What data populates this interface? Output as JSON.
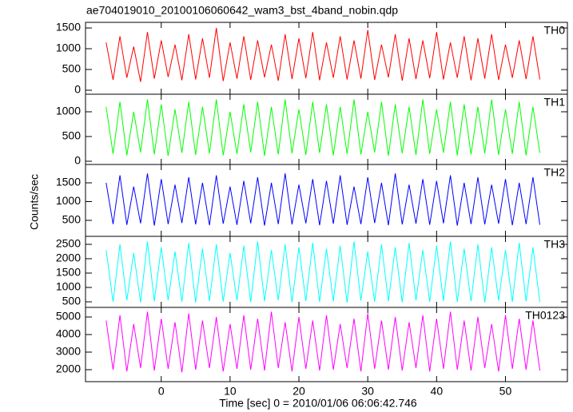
{
  "chart_data": [
    {
      "type": "line",
      "title": "ae704019010_20100106060642_wam3_bst_4band_nobin.qdp",
      "label": "TH0",
      "color": "#ff0000",
      "x": [
        -8,
        -7,
        -6,
        -5,
        -4,
        -3,
        -2,
        -1,
        0,
        1,
        2,
        3,
        4,
        5,
        6,
        7,
        8,
        9,
        10,
        11,
        12,
        13,
        14,
        15,
        16,
        17,
        18,
        19,
        20,
        21,
        22,
        23,
        24,
        25,
        26,
        27,
        28,
        29,
        30,
        31,
        32,
        33,
        34,
        35,
        36,
        37,
        38,
        39,
        40,
        41,
        42,
        43,
        44,
        45,
        46,
        47,
        48,
        49,
        50,
        51,
        52,
        53,
        54,
        55
      ],
      "values": [
        1150,
        250,
        1300,
        300,
        1050,
        200,
        1400,
        280,
        1200,
        320,
        1100,
        240,
        1350,
        260,
        1250,
        300,
        1500,
        220,
        1150,
        280,
        1300,
        250,
        1200,
        310,
        1100,
        230,
        1350,
        270,
        1250,
        290,
        1400,
        240,
        1150,
        300,
        1300,
        260,
        1200,
        280,
        1450,
        250,
        1100,
        310,
        1350,
        230,
        1250,
        270,
        1200,
        290,
        1400,
        260,
        1150,
        300,
        1300,
        240,
        1250,
        280,
        1350,
        250,
        1100,
        300,
        1200,
        270,
        1300,
        260
      ],
      "xlim": [
        -11,
        59
      ],
      "ylim": [
        -96,
        1635
      ],
      "yticks": [
        0,
        500,
        1000,
        1500
      ]
    },
    {
      "type": "line",
      "label": "TH1",
      "color": "#00ff00",
      "values": [
        1100,
        150,
        1200,
        120,
        1000,
        180,
        1250,
        140,
        1150,
        110,
        1050,
        170,
        1200,
        130,
        1100,
        160,
        1250,
        120,
        1000,
        150,
        1150,
        180,
        1200,
        110,
        1100,
        140,
        1250,
        160,
        1050,
        130,
        1200,
        170,
        1150,
        120,
        1100,
        150,
        1250,
        140,
        1000,
        180,
        1200,
        110,
        1150,
        160,
        1100,
        130,
        1250,
        150,
        1050,
        170,
        1200,
        120,
        1150,
        140,
        1100,
        160,
        1250,
        130,
        1050,
        150,
        1200,
        120,
        1100,
        170
      ],
      "ylim": [
        -65,
        1355
      ],
      "yticks": [
        0,
        500,
        1000
      ]
    },
    {
      "type": "line",
      "label": "TH2",
      "color": "#0000ff",
      "ylabel": "Counts/sec",
      "values": [
        1500,
        400,
        1700,
        380,
        1400,
        420,
        1750,
        360,
        1600,
        400,
        1450,
        430,
        1650,
        390,
        1500,
        370,
        1700,
        410,
        1400,
        380,
        1550,
        420,
        1650,
        360,
        1500,
        400,
        1750,
        390,
        1450,
        420,
        1600,
        370,
        1550,
        410,
        1700,
        380,
        1400,
        400,
        1650,
        430,
        1500,
        370,
        1750,
        390,
        1450,
        410,
        1600,
        380,
        1550,
        420,
        1700,
        360,
        1500,
        400,
        1650,
        390,
        1450,
        410,
        1600,
        370,
        1500,
        400,
        1650,
        380
      ],
      "ylim": [
        74,
        1989
      ],
      "yticks": [
        500,
        1000,
        1500
      ]
    },
    {
      "type": "line",
      "label": "TH3",
      "color": "#00ffff",
      "values": [
        2300,
        500,
        2500,
        550,
        2200,
        480,
        2600,
        520,
        2400,
        560,
        2250,
        500,
        2550,
        470,
        2350,
        530,
        2500,
        510,
        2200,
        550,
        2450,
        490,
        2600,
        520,
        2300,
        560,
        2500,
        480,
        2400,
        530,
        2550,
        500,
        2350,
        520,
        2450,
        470,
        2600,
        540,
        2250,
        500,
        2500,
        520,
        2400,
        480,
        2550,
        550,
        2300,
        500,
        2450,
        530,
        2600,
        490,
        2350,
        520,
        2500,
        470,
        2400,
        540,
        2300,
        500,
        2550,
        520,
        2400,
        490
      ],
      "ylim": [
        306,
        2778
      ],
      "yticks": [
        500,
        1000,
        1500,
        2000,
        2500
      ]
    },
    {
      "type": "line",
      "label": "TH0123",
      "color": "#ff00ff",
      "xlabel": "Time [sec] 0 = 2010/01/06 06:06:42.746",
      "values": [
        4800,
        2000,
        5100,
        1900,
        4600,
        2100,
        5300,
        1950,
        4900,
        2050,
        4700,
        1850,
        5200,
        2000,
        4800,
        2100,
        5000,
        1900,
        4600,
        2050,
        5100,
        2000,
        4900,
        1950,
        5300,
        2100,
        4700,
        1900,
        5000,
        2050,
        4800,
        1950,
        5100,
        2000,
        4600,
        2100,
        4900,
        1900,
        5200,
        2050,
        4800,
        2000,
        5000,
        1950,
        4700,
        2100,
        5100,
        1900,
        4900,
        2050,
        5300,
        2000,
        4800,
        1950,
        5000,
        2100,
        4600,
        1900,
        5100,
        2050,
        4900,
        2000,
        4800,
        1950
      ],
      "ylim": [
        1318,
        5545
      ],
      "yticks": [
        2000,
        3000,
        4000,
        5000
      ],
      "xticks": [
        0,
        10,
        20,
        30,
        40,
        50
      ]
    }
  ]
}
